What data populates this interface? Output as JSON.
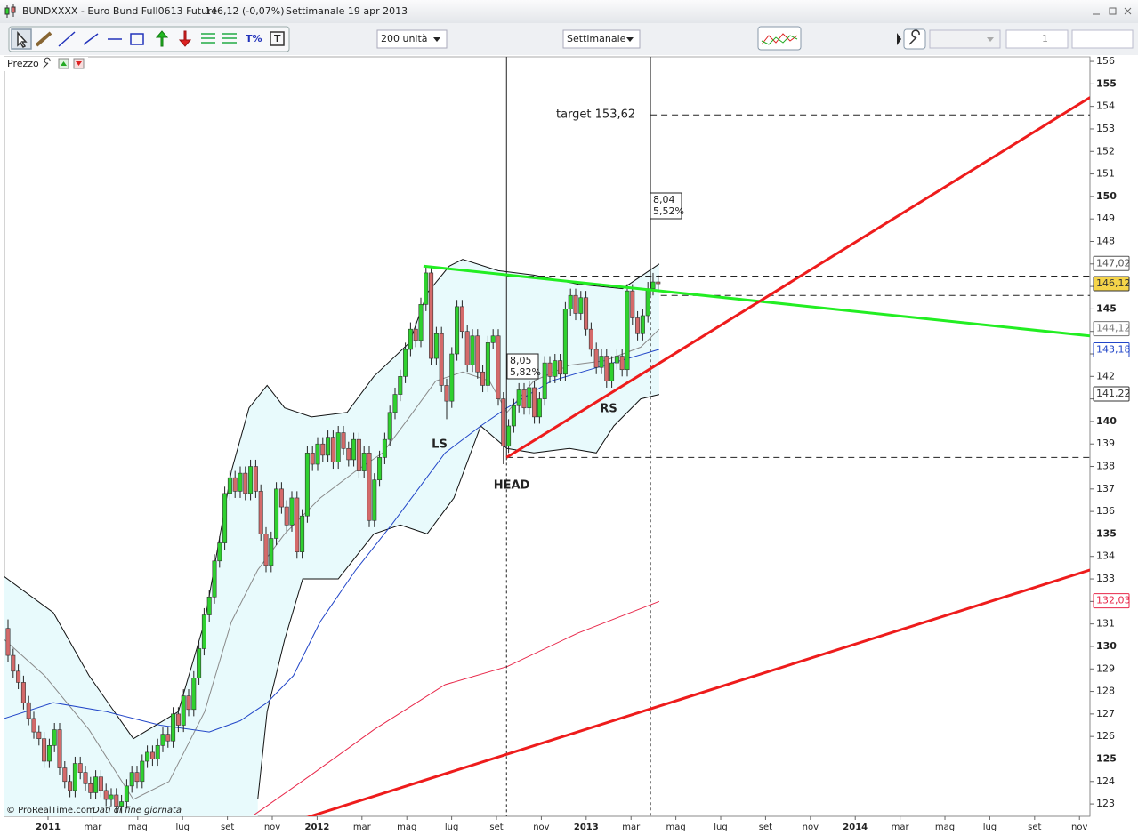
{
  "window": {
    "title": "BUNDXXXX - Euro Bund Full0613 Future",
    "quote": "146,12 (-0,07%)",
    "period": "Settimanale  19 apr 2013"
  },
  "toolbar": {
    "units": "200 unità",
    "timeframe": "Settimanale",
    "count": "1"
  },
  "panel_label": "Prezzo",
  "chart_data": {
    "type": "candlestick",
    "xlim": [
      -0.69,
      209.66
    ],
    "ylim": [
      122.45,
      156.2
    ],
    "xticks": [
      {
        "value": 7.76,
        "label": "2011"
      },
      {
        "value": 16.45,
        "label": "mar"
      },
      {
        "value": 25.14,
        "label": "mag"
      },
      {
        "value": 33.83,
        "label": "lug"
      },
      {
        "value": 42.52,
        "label": "set"
      },
      {
        "value": 51.21,
        "label": "nov"
      },
      {
        "value": 59.9,
        "label": "2012"
      },
      {
        "value": 68.59,
        "label": "mar"
      },
      {
        "value": 77.28,
        "label": "mag"
      },
      {
        "value": 85.97,
        "label": "lug"
      },
      {
        "value": 94.66,
        "label": "set"
      },
      {
        "value": 103.35,
        "label": "nov"
      },
      {
        "value": 112.04,
        "label": "2013"
      },
      {
        "value": 120.73,
        "label": "mar"
      },
      {
        "value": 129.42,
        "label": "mag"
      },
      {
        "value": 138.11,
        "label": "lug"
      },
      {
        "value": 146.8,
        "label": "set"
      },
      {
        "value": 155.49,
        "label": "nov"
      },
      {
        "value": 164.18,
        "label": "2014"
      },
      {
        "value": 172.87,
        "label": "mar"
      },
      {
        "value": 181.56,
        "label": "mag"
      },
      {
        "value": 190.25,
        "label": "lug"
      },
      {
        "value": 198.94,
        "label": "set"
      },
      {
        "value": 207.63,
        "label": "nov"
      }
    ],
    "yticks": [
      123,
      124,
      125,
      126,
      127,
      128,
      129,
      130,
      131,
      132,
      133,
      134,
      135,
      136,
      137,
      138,
      139,
      140,
      141,
      142,
      143,
      144,
      145,
      146,
      147,
      148,
      149,
      150,
      151,
      152,
      153,
      154,
      155,
      156
    ],
    "up_color": "#2fd12f",
    "down_color": "#d46a6a",
    "candles": [
      [
        130.8,
        131.2,
        129.3,
        129.6
      ],
      [
        129.6,
        129.9,
        128.6,
        128.9
      ],
      [
        128.9,
        129.2,
        128.1,
        128.4
      ],
      [
        128.4,
        128.7,
        127.2,
        127.5
      ],
      [
        127.5,
        127.8,
        126.5,
        126.8
      ],
      [
        126.8,
        127.1,
        125.9,
        126.2
      ],
      [
        126.2,
        126.5,
        125.6,
        125.9
      ],
      [
        125.9,
        126.2,
        124.6,
        124.9
      ],
      [
        124.9,
        125.9,
        124.6,
        125.6
      ],
      [
        125.6,
        126.6,
        125.3,
        126.3
      ],
      [
        126.3,
        126.6,
        124.3,
        124.6
      ],
      [
        124.6,
        124.9,
        123.7,
        124.0
      ],
      [
        124.0,
        124.3,
        123.3,
        123.6
      ],
      [
        123.6,
        125.1,
        123.3,
        124.8
      ],
      [
        124.8,
        125.1,
        124.1,
        124.4
      ],
      [
        124.4,
        124.7,
        123.6,
        123.9
      ],
      [
        123.9,
        124.2,
        123.2,
        123.5
      ],
      [
        123.5,
        124.5,
        123.2,
        124.2
      ],
      [
        124.2,
        124.5,
        123.3,
        123.6
      ],
      [
        123.6,
        123.9,
        122.9,
        123.2
      ],
      [
        123.2,
        123.7,
        122.9,
        123.4
      ],
      [
        123.4,
        123.7,
        122.6,
        122.9
      ],
      [
        122.9,
        123.4,
        122.6,
        123.1
      ],
      [
        123.1,
        124.1,
        122.8,
        123.8
      ],
      [
        123.8,
        124.7,
        123.5,
        124.4
      ],
      [
        124.4,
        124.7,
        123.7,
        124.0
      ],
      [
        124.0,
        125.2,
        123.7,
        124.9
      ],
      [
        124.9,
        125.6,
        124.6,
        125.3
      ],
      [
        125.3,
        125.6,
        124.7,
        125.0
      ],
      [
        125.0,
        125.9,
        124.7,
        125.6
      ],
      [
        125.6,
        126.4,
        125.3,
        126.1
      ],
      [
        126.1,
        126.4,
        125.5,
        125.8
      ],
      [
        125.8,
        127.3,
        125.5,
        127.0
      ],
      [
        127.0,
        127.3,
        126.2,
        126.5
      ],
      [
        126.5,
        128.1,
        126.2,
        127.8
      ],
      [
        127.8,
        128.1,
        126.9,
        127.2
      ],
      [
        127.2,
        128.9,
        126.9,
        128.6
      ],
      [
        128.6,
        130.2,
        128.3,
        129.9
      ],
      [
        129.9,
        131.7,
        129.6,
        131.4
      ],
      [
        131.4,
        132.5,
        131.1,
        132.2
      ],
      [
        132.2,
        134.1,
        131.9,
        133.8
      ],
      [
        133.8,
        134.9,
        133.5,
        134.6
      ],
      [
        134.6,
        137.1,
        134.3,
        136.8
      ],
      [
        136.8,
        137.8,
        136.5,
        137.5
      ],
      [
        137.5,
        137.8,
        136.6,
        136.9
      ],
      [
        136.9,
        138.0,
        136.6,
        137.7
      ],
      [
        137.7,
        138.0,
        136.5,
        136.8
      ],
      [
        136.8,
        138.3,
        136.5,
        138.0
      ],
      [
        138.0,
        138.3,
        136.6,
        136.9
      ],
      [
        136.9,
        137.2,
        134.7,
        135.0
      ],
      [
        135.0,
        135.3,
        133.3,
        133.6
      ],
      [
        133.6,
        135.1,
        133.3,
        134.8
      ],
      [
        134.8,
        137.3,
        134.5,
        137.0
      ],
      [
        137.0,
        137.3,
        135.9,
        136.2
      ],
      [
        136.2,
        136.5,
        135.1,
        135.4
      ],
      [
        135.4,
        136.9,
        135.1,
        136.6
      ],
      [
        136.6,
        136.9,
        133.9,
        134.2
      ],
      [
        134.2,
        136.1,
        133.9,
        135.8
      ],
      [
        135.8,
        138.9,
        135.5,
        138.6
      ],
      [
        138.6,
        138.9,
        137.8,
        138.1
      ],
      [
        138.1,
        139.3,
        137.8,
        139.0
      ],
      [
        139.0,
        139.3,
        138.2,
        138.5
      ],
      [
        138.5,
        139.6,
        138.2,
        139.3
      ],
      [
        139.3,
        139.6,
        137.9,
        138.2
      ],
      [
        138.2,
        139.8,
        137.9,
        139.5
      ],
      [
        139.5,
        139.8,
        138.5,
        138.8
      ],
      [
        138.8,
        139.1,
        138.0,
        138.3
      ],
      [
        138.3,
        139.5,
        138.0,
        139.2
      ],
      [
        139.2,
        139.5,
        137.5,
        137.8
      ],
      [
        137.8,
        138.9,
        137.5,
        138.6
      ],
      [
        138.6,
        138.9,
        135.3,
        135.6
      ],
      [
        135.6,
        137.7,
        135.3,
        137.4
      ],
      [
        137.4,
        138.7,
        137.1,
        138.4
      ],
      [
        138.4,
        139.5,
        138.1,
        139.2
      ],
      [
        139.2,
        140.7,
        138.9,
        140.4
      ],
      [
        140.4,
        141.5,
        140.1,
        141.2
      ],
      [
        141.2,
        142.3,
        140.9,
        142.0
      ],
      [
        142.0,
        143.5,
        141.7,
        143.2
      ],
      [
        143.2,
        144.4,
        142.9,
        144.1
      ],
      [
        144.1,
        144.4,
        143.3,
        143.6
      ],
      [
        143.6,
        145.5,
        143.3,
        145.2
      ],
      [
        145.2,
        146.9,
        144.9,
        146.6
      ],
      [
        146.6,
        146.9,
        142.5,
        142.8
      ],
      [
        142.8,
        144.2,
        142.5,
        143.9
      ],
      [
        143.9,
        144.2,
        141.3,
        141.6
      ],
      [
        141.6,
        141.9,
        140.1,
        140.9
      ],
      [
        140.9,
        143.3,
        140.6,
        143.0
      ],
      [
        143.0,
        145.4,
        142.7,
        145.1
      ],
      [
        145.1,
        145.4,
        143.7,
        144.0
      ],
      [
        144.0,
        144.3,
        142.2,
        142.5
      ],
      [
        142.5,
        144.1,
        142.2,
        143.8
      ],
      [
        143.8,
        144.1,
        141.9,
        142.2
      ],
      [
        142.2,
        142.5,
        141.3,
        141.6
      ],
      [
        141.6,
        143.8,
        141.3,
        143.5
      ],
      [
        143.5,
        144.1,
        143.2,
        143.8
      ],
      [
        143.8,
        144.1,
        140.7,
        141.0
      ],
      [
        141.0,
        141.3,
        138.1,
        138.9
      ],
      [
        138.9,
        140.1,
        138.6,
        139.8
      ],
      [
        139.8,
        141.0,
        139.5,
        140.7
      ],
      [
        140.7,
        141.7,
        140.4,
        141.4
      ],
      [
        141.4,
        141.7,
        140.3,
        140.6
      ],
      [
        140.6,
        141.8,
        140.3,
        141.5
      ],
      [
        141.5,
        141.8,
        139.9,
        140.2
      ],
      [
        140.2,
        141.3,
        139.9,
        141.0
      ],
      [
        141.0,
        142.9,
        140.7,
        142.6
      ],
      [
        142.6,
        142.9,
        141.7,
        142.0
      ],
      [
        142.0,
        143.0,
        141.7,
        142.7
      ],
      [
        142.7,
        143.0,
        141.8,
        142.1
      ],
      [
        142.1,
        145.3,
        141.8,
        145.0
      ],
      [
        145.0,
        145.9,
        144.7,
        145.6
      ],
      [
        145.6,
        145.9,
        144.5,
        144.8
      ],
      [
        144.8,
        145.8,
        144.5,
        145.5
      ],
      [
        145.5,
        145.8,
        143.8,
        144.1
      ],
      [
        144.1,
        144.4,
        142.9,
        143.2
      ],
      [
        143.2,
        143.5,
        142.1,
        142.4
      ],
      [
        142.4,
        143.2,
        142.1,
        142.9
      ],
      [
        142.9,
        143.2,
        141.5,
        141.8
      ],
      [
        141.8,
        142.9,
        141.5,
        142.6
      ],
      [
        142.6,
        143.2,
        142.3,
        142.9
      ],
      [
        142.9,
        143.2,
        142.0,
        142.3
      ],
      [
        142.3,
        146.1,
        142.0,
        145.8
      ],
      [
        145.8,
        146.1,
        144.3,
        144.6
      ],
      [
        144.6,
        144.9,
        143.6,
        143.9
      ],
      [
        143.9,
        145.0,
        143.6,
        144.7
      ],
      [
        144.7,
        146.2,
        144.4,
        145.9
      ],
      [
        145.9,
        146.6,
        145.6,
        146.2
      ],
      [
        146.2,
        146.5,
        145.8,
        146.12
      ]
    ],
    "bands": {
      "fill": "#e8fafc",
      "color": "#111111",
      "upper": {
        "x": [
          -0.7,
          8.8,
          15.7,
          24.3,
          33.0,
          38.1,
          43.3,
          46.7,
          50.2,
          53.6,
          58.8,
          65.7,
          70.9,
          77.8,
          81.2,
          85.5,
          88.1,
          95.0,
          101.9,
          110.5,
          119.1,
          126.2
        ],
        "values": [
          133.1,
          131.5,
          128.7,
          125.9,
          127.1,
          131.1,
          137.8,
          140.6,
          141.6,
          140.6,
          140.2,
          140.4,
          142.0,
          143.5,
          145.7,
          146.9,
          147.2,
          146.7,
          146.5,
          146.1,
          145.9,
          147.0
        ]
      },
      "lower": {
        "x": [
          48.4,
          50.2,
          53.6,
          57.1,
          64.0,
          70.9,
          76.0,
          81.2,
          86.4,
          91.6,
          96.7,
          101.9,
          108.8,
          114.0,
          117.4,
          122.6,
          126.2
        ],
        "values": [
          123.2,
          127.1,
          130.3,
          133.0,
          133.0,
          135.0,
          135.4,
          135.0,
          136.6,
          139.8,
          138.8,
          138.6,
          138.8,
          138.6,
          139.8,
          141.0,
          141.2
        ]
      }
    },
    "lines": [
      {
        "color": "#8a8a8a",
        "x": [
          -0.7,
          7.1,
          15.7,
          24.3,
          31.2,
          38.1,
          43.3,
          48.4,
          53.6,
          60.5,
          67.4,
          72.6,
          77.8,
          82.9,
          88.1,
          93.3,
          96.7,
          101.9,
          108.8,
          115.7,
          122.6,
          126.2
        ],
        "values": [
          130.3,
          128.7,
          126.3,
          123.2,
          124.0,
          127.1,
          131.1,
          133.4,
          135.0,
          136.6,
          137.8,
          138.6,
          140.2,
          141.8,
          142.2,
          141.8,
          140.4,
          141.8,
          142.5,
          142.7,
          143.3,
          144.1
        ]
      },
      {
        "color": "#2246c8",
        "x": [
          -0.7,
          8.8,
          19.1,
          29.5,
          39.0,
          45.0,
          50.2,
          55.3,
          60.5,
          67.4,
          74.3,
          79.5,
          84.7,
          91.6,
          96.7,
          105.3,
          115.7,
          126.2
        ],
        "values": [
          126.8,
          127.5,
          127.1,
          126.5,
          126.2,
          126.7,
          127.5,
          128.7,
          131.1,
          133.4,
          135.4,
          137.0,
          138.6,
          139.8,
          140.6,
          141.8,
          142.5,
          143.2
        ]
      },
      {
        "color": "#e8284a",
        "x": [
          47.6,
          58.8,
          70.9,
          84.7,
          96.7,
          110.5,
          126.2
        ],
        "values": [
          122.5,
          124.3,
          126.3,
          128.3,
          129.1,
          130.6,
          132.0
        ]
      }
    ],
    "trendlines": [
      {
        "color": "#22ee22",
        "x": [
          80.5,
          209.7
        ],
        "values": [
          146.9,
          143.8
        ]
      },
      {
        "color": "#ee1c1c",
        "x": [
          96.6,
          209.7
        ],
        "values": [
          138.4,
          154.4
        ]
      },
      {
        "color": "#ee1c1c",
        "x": [
          57.9,
          209.7
        ],
        "values": [
          122.4,
          133.4
        ]
      }
    ],
    "verticals": [
      {
        "x": 96.6,
        "split": 138.4
      },
      {
        "x": 124.5,
        "split": 145.6
      }
    ],
    "levels": [
      {
        "value": 153.62,
        "from": 124.5
      },
      {
        "value": 146.46,
        "from": 96.6
      },
      {
        "value": 145.6,
        "from": 126.5
      },
      {
        "value": 138.4,
        "from": 96.6
      }
    ],
    "price_tags": [
      {
        "value": 147.02,
        "label": "147,02",
        "color": "#555555",
        "bg": "#ffffff"
      },
      {
        "value": 146.12,
        "label": "146,12",
        "color": "#333333",
        "bg": "#f5d44a"
      },
      {
        "value": 144.12,
        "label": "144,12",
        "color": "#777777",
        "bg": "#ffffff"
      },
      {
        "value": 143.18,
        "label": "143,18",
        "color": "#2246c8",
        "bg": "#ffffff"
      },
      {
        "value": 141.22,
        "label": "141,22",
        "color": "#333333",
        "bg": "#ffffff"
      },
      {
        "value": 132.03,
        "label": "132,03",
        "color": "#e8284a",
        "bg": "#ffffff"
      }
    ],
    "annotations": {
      "target": "target 153,62",
      "box1": [
        "8,04",
        "5,52%"
      ],
      "box2": [
        "8,05",
        "5,82%"
      ],
      "ls": "LS",
      "head": "HEAD",
      "rs": "RS"
    },
    "footer": {
      "copyright": "© ProRealTime.com",
      "note": "Dati di fine giornata"
    }
  }
}
